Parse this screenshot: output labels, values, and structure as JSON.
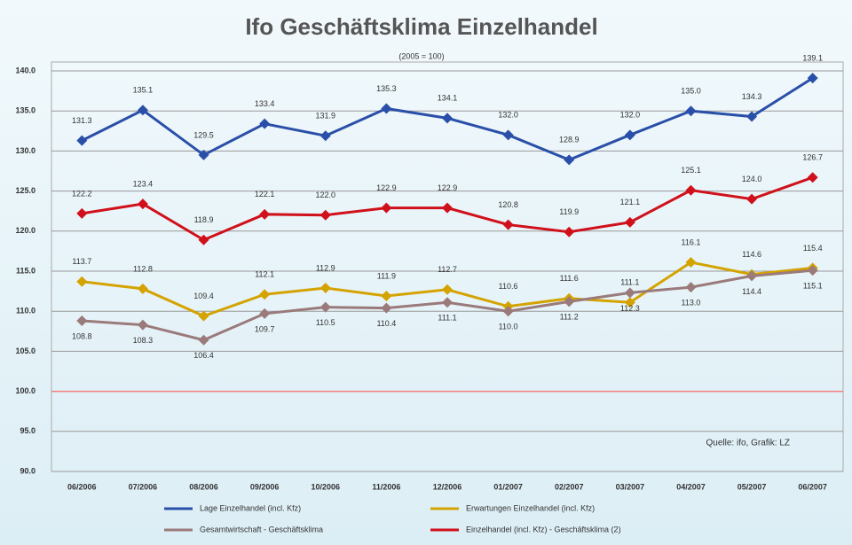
{
  "chart_data": {
    "type": "line",
    "title": "Ifo Geschäftsklima Einzelhandel",
    "subtitle": "(2005 = 100)",
    "annotation": "Quelle: ifo, Grafik: LZ",
    "categories": [
      "06/2006",
      "07/2006",
      "08/2006",
      "09/2006",
      "10/2006",
      "11/2006",
      "12/2006",
      "01/2007",
      "02/2007",
      "03/2007",
      "04/2007",
      "05/2007",
      "06/2007"
    ],
    "series": [
      {
        "name": "Lage Einzelhandel (incl. Kfz)",
        "color": "#2a4fa8",
        "label_side": "above",
        "values": [
          131.3,
          135.1,
          129.5,
          133.4,
          131.9,
          135.3,
          134.1,
          132.0,
          128.9,
          132.0,
          135.0,
          134.3,
          139.1
        ],
        "value_labels": [
          "131.3",
          "135.1",
          "129.5",
          "133.4",
          "131.9",
          "135.3",
          "134.1",
          "132.0",
          "128.9",
          "132.0",
          "135.0",
          "134.3",
          "139.1"
        ]
      },
      {
        "name": "Erwartungen Einzelhandel (incl. Kfz)",
        "color": "#d4a300",
        "label_side": "above",
        "values": [
          113.7,
          112.8,
          109.4,
          112.1,
          112.9,
          111.9,
          112.7,
          110.6,
          111.6,
          111.1,
          116.1,
          114.6,
          115.4
        ],
        "value_labels": [
          "113.7",
          "112.8",
          "109.4",
          "112.1",
          "112.9",
          "111.9",
          "112.7",
          "110.6",
          "111.6",
          "111.1",
          "116.1",
          "114.6",
          "115.4"
        ]
      },
      {
        "name": "Gesamtwirtschaft - Geschäftsklima",
        "color": "#9a7a7a",
        "label_side": "below",
        "values": [
          108.8,
          108.3,
          106.4,
          109.7,
          110.5,
          110.4,
          111.1,
          110.0,
          111.2,
          112.3,
          113.0,
          114.4,
          115.1
        ],
        "value_labels": [
          "108.8",
          "108.3",
          "106.4",
          "109.7",
          "110.5",
          "110.4",
          "111.1",
          "110.0",
          "111.2",
          "112.3",
          "113.0",
          "114.4",
          "115.1"
        ]
      },
      {
        "name": "Einzelhandel (incl. Kfz) - Geschäftsklima (2)",
        "color": "#d0101a",
        "label_side": "above",
        "values": [
          122.2,
          123.4,
          118.9,
          122.1,
          122.0,
          122.9,
          122.9,
          120.8,
          119.9,
          121.1,
          125.1,
          124.0,
          126.7
        ],
        "value_labels": [
          "122.2",
          "123.4",
          "118.9",
          "122.1",
          "122.0",
          "122.9",
          "122.9",
          "120.8",
          "119.9",
          "121.1",
          "125.1",
          "124.0",
          "126.7"
        ]
      }
    ],
    "ylim": [
      90,
      140
    ],
    "yticks": [
      {
        "value": 90,
        "label": "90.0"
      },
      {
        "value": 95,
        "label": "95.0"
      },
      {
        "value": 100,
        "label": "100.0"
      },
      {
        "value": 105,
        "label": "105.0"
      },
      {
        "value": 110,
        "label": "110.0"
      },
      {
        "value": 115,
        "label": "115.0"
      },
      {
        "value": 120,
        "label": "120.0"
      },
      {
        "value": 125,
        "label": "125.0"
      },
      {
        "value": 130,
        "label": "130.0"
      },
      {
        "value": 135,
        "label": "135.0"
      },
      {
        "value": 140,
        "label": "140.0"
      }
    ],
    "reference_line": {
      "value": 100,
      "color": "#f08080"
    },
    "grid": true
  }
}
